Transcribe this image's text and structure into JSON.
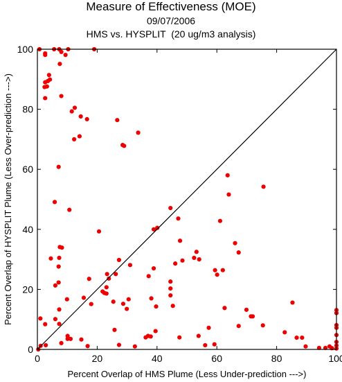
{
  "chart_data": {
    "type": "scatter",
    "title": "Measure of Effectiveness (MOE)",
    "subtitle_date": "09/07/2006",
    "subtitle": "HMS vs. HYSPLIT  (20 ug/m3 analysis)",
    "xlabel": "Percent Overlap of HMS Plume (Less Under-prediction --->)",
    "ylabel": "Percent Overlap of HYSPLIT Plume (Less Over-prediction --->)",
    "xlim": [
      0,
      100
    ],
    "ylim": [
      0,
      100
    ],
    "xticks": [
      0,
      20,
      40,
      60,
      80,
      100
    ],
    "yticks": [
      0,
      20,
      40,
      60,
      80,
      100
    ],
    "grid": false,
    "reference_line": "y = x diagonal",
    "marker_color": "#ee0000",
    "line_color": "#000000",
    "series": [
      {
        "points": [
          [
            0.7,
            100
          ],
          [
            2.6,
            98.6
          ],
          [
            2.6,
            98.1
          ],
          [
            5.6,
            100
          ],
          [
            7.3,
            100
          ],
          [
            8.0,
            99.1
          ],
          [
            9.4,
            98.1
          ],
          [
            10.3,
            100
          ],
          [
            19.0,
            100
          ],
          [
            7.5,
            95.1
          ],
          [
            3.9,
            91.4
          ],
          [
            3.5,
            89.4
          ],
          [
            2.6,
            89.0
          ],
          [
            4.2,
            89.9
          ],
          [
            2.4,
            87.4
          ],
          [
            3.2,
            87.6
          ],
          [
            8.0,
            84.4
          ],
          [
            2.6,
            83.7
          ],
          [
            12.5,
            80.5
          ],
          [
            11.5,
            79.3
          ],
          [
            14.5,
            77.6
          ],
          [
            16.6,
            76.7
          ],
          [
            26.7,
            76.4
          ],
          [
            33.7,
            72.2
          ],
          [
            14.1,
            71.0
          ],
          [
            12.3,
            70.0
          ],
          [
            28.5,
            68.1
          ],
          [
            29.0,
            67.8
          ],
          [
            7.1,
            60.8
          ],
          [
            5.8,
            49.1
          ],
          [
            10.7,
            46.5
          ],
          [
            20.6,
            39.3
          ],
          [
            4.5,
            30.3
          ],
          [
            7.3,
            30.5
          ],
          [
            7.5,
            34.1
          ],
          [
            8.2,
            33.9
          ],
          [
            7.1,
            27.6
          ],
          [
            7.1,
            22.3
          ],
          [
            6.0,
            21.3
          ],
          [
            9.9,
            16.7
          ],
          [
            7.3,
            13.3
          ],
          [
            1.0,
            10.3
          ],
          [
            2.6,
            8.4
          ],
          [
            6.0,
            10.1
          ],
          [
            10.1,
            4.5
          ],
          [
            10.3,
            3.7
          ],
          [
            10.1,
            3.5
          ],
          [
            11.1,
            3.5
          ],
          [
            14.7,
            3.3
          ],
          [
            7.3,
            8.5
          ],
          [
            0.3,
            0
          ],
          [
            1.1,
            1.2
          ],
          [
            2.8,
            1.4
          ],
          [
            8.0,
            2.1
          ],
          [
            16.8,
            1.1
          ],
          [
            17.3,
            23.5
          ],
          [
            15.5,
            17.2
          ],
          [
            18.0,
            15.1
          ],
          [
            21.8,
            19.3
          ],
          [
            22.4,
            18.8
          ],
          [
            23.1,
            18.6
          ],
          [
            23.1,
            20.7
          ],
          [
            23.3,
            25.1
          ],
          [
            23.9,
            23.6
          ],
          [
            27.3,
            29.8
          ],
          [
            26.2,
            25.1
          ],
          [
            25.4,
            15.9
          ],
          [
            28.7,
            15.2
          ],
          [
            29.9,
            13.5
          ],
          [
            30.5,
            16.7
          ],
          [
            31.0,
            28.1
          ],
          [
            32.6,
            1.0
          ],
          [
            25.8,
            6.5
          ],
          [
            27.3,
            1.5
          ],
          [
            37.2,
            24.4
          ],
          [
            38.9,
            27.0
          ],
          [
            38.1,
            17.0
          ],
          [
            39.7,
            14.3
          ],
          [
            36.2,
            4.0
          ],
          [
            37.0,
            4.5
          ],
          [
            37.9,
            4.3
          ],
          [
            39.5,
            6.1
          ],
          [
            38.9,
            40.0
          ],
          [
            40.1,
            40.5
          ],
          [
            44.5,
            47.1
          ],
          [
            46.1,
            28.6
          ],
          [
            48.5,
            29.6
          ],
          [
            47.7,
            36.2
          ],
          [
            47.1,
            43.6
          ],
          [
            44.5,
            22.6
          ],
          [
            44.5,
            20.3
          ],
          [
            44.5,
            18.0
          ],
          [
            45.3,
            14.5
          ],
          [
            47.5,
            4.0
          ],
          [
            52.4,
            30.5
          ],
          [
            53.2,
            32.5
          ],
          [
            54.1,
            30.0
          ],
          [
            53.9,
            4.5
          ],
          [
            56.1,
            1.4
          ],
          [
            57.3,
            7.2
          ],
          [
            59.2,
            1.7
          ],
          [
            59.4,
            26.4
          ],
          [
            60.1,
            24.9
          ],
          [
            61.1,
            42.8
          ],
          [
            62.0,
            26.4
          ],
          [
            62.6,
            13.8
          ],
          [
            63.6,
            58.0
          ],
          [
            64.0,
            51.6
          ],
          [
            66.1,
            35.4
          ],
          [
            67.3,
            32.3
          ],
          [
            67.3,
            7.8
          ],
          [
            69.9,
            13.2
          ],
          [
            71.4,
            11.0
          ],
          [
            72.0,
            11.0
          ],
          [
            75.6,
            54.2
          ],
          [
            75.4,
            8.0
          ],
          [
            82.7,
            5.7
          ],
          [
            85.3,
            15.6
          ],
          [
            86.7,
            3.9
          ],
          [
            88.5,
            3.9
          ],
          [
            89.7,
            1.0
          ],
          [
            94.2,
            0.5
          ],
          [
            96.3,
            0.5
          ],
          [
            97.7,
            1.0
          ],
          [
            98.5,
            0.4
          ],
          [
            100,
            13.1
          ],
          [
            100,
            12.1
          ],
          [
            100,
            8.1
          ],
          [
            100,
            7.2
          ],
          [
            100,
            4.8
          ],
          [
            100,
            2.5
          ],
          [
            100,
            1.3
          ],
          [
            100,
            0.3
          ]
        ]
      }
    ]
  }
}
